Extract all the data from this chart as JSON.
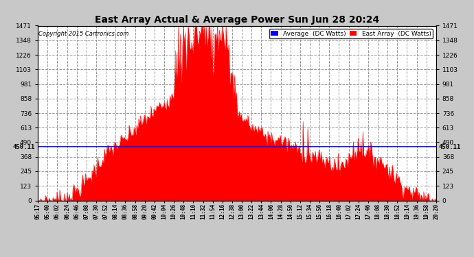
{
  "title": "East Array Actual & Average Power Sun Jun 28 20:24",
  "copyright": "Copyright 2015 Cartronics.com",
  "y_max": 1471.1,
  "y_min": 0.0,
  "y_ticks": [
    0.0,
    122.6,
    245.2,
    367.8,
    490.4,
    612.9,
    735.5,
    858.1,
    980.7,
    1103.3,
    1225.9,
    1348.5,
    1471.1
  ],
  "average_value": 450.11,
  "legend_avg_label": "Average  (DC Watts)",
  "legend_east_label": "East Array  (DC Watts)",
  "avg_line_color": "#0000ff",
  "fill_color": "#ff0000",
  "background_color": "#c8c8c8",
  "plot_bg_color": "#ffffff",
  "grid_color": "#999999",
  "title_color": "#000000",
  "x_tick_labels": [
    "05:17",
    "05:40",
    "06:02",
    "06:24",
    "06:46",
    "07:08",
    "07:30",
    "07:52",
    "08:14",
    "08:36",
    "08:58",
    "09:20",
    "09:42",
    "10:04",
    "10:26",
    "10:48",
    "11:10",
    "11:32",
    "11:54",
    "12:16",
    "12:38",
    "13:00",
    "13:22",
    "13:44",
    "14:06",
    "14:28",
    "14:50",
    "15:12",
    "15:34",
    "15:56",
    "16:18",
    "16:40",
    "17:02",
    "17:24",
    "17:46",
    "18:08",
    "18:30",
    "18:52",
    "19:14",
    "19:36",
    "19:58",
    "20:20"
  ]
}
